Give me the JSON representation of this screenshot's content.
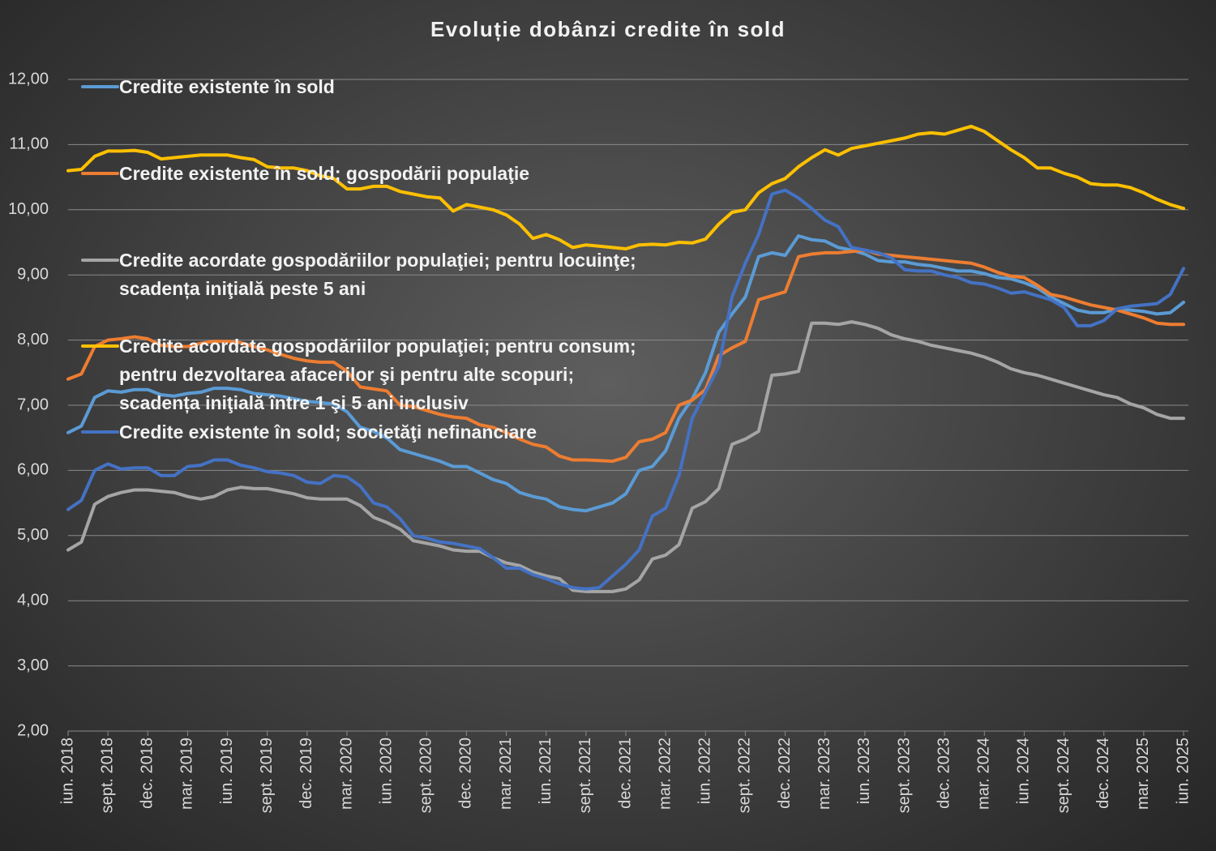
{
  "chart_data": {
    "type": "line",
    "title": "Evoluție dobânzi credite în sold",
    "categories": [
      "iun. 2018",
      null,
      null,
      "sept. 2018",
      null,
      null,
      "dec. 2018",
      null,
      null,
      "mar. 2019",
      null,
      null,
      "iun. 2019",
      null,
      null,
      "sept. 2019",
      null,
      null,
      "dec. 2019",
      null,
      null,
      "mar. 2020",
      null,
      null,
      "iun. 2020",
      null,
      null,
      "sept. 2020",
      null,
      null,
      "dec. 2020",
      null,
      null,
      "mar. 2021",
      null,
      null,
      "iun. 2021",
      null,
      null,
      "sept. 2021",
      null,
      null,
      "dec. 2021",
      null,
      null,
      "mar. 2022",
      null,
      null,
      "iun. 2022",
      null,
      null,
      "sept. 2022",
      null,
      null,
      "dec. 2022",
      null,
      null,
      "mar. 2023",
      null,
      null,
      "iun. 2023",
      null,
      null,
      "sept. 2023",
      null,
      null,
      "dec. 2023",
      null,
      null,
      "mar. 2024",
      null,
      null,
      "iun. 2024",
      null,
      null,
      "sept. 2024",
      null,
      null,
      "dec. 2024",
      null,
      null,
      "mar. 2025",
      null,
      null,
      "iun. 2025"
    ],
    "ylim": [
      2,
      12
    ],
    "yticks": [
      {
        "value": 2,
        "label": "2,00"
      },
      {
        "value": 3,
        "label": "3,00"
      },
      {
        "value": 4,
        "label": "4,00"
      },
      {
        "value": 5,
        "label": "5,00"
      },
      {
        "value": 6,
        "label": "6,00"
      },
      {
        "value": 7,
        "label": "7,00"
      },
      {
        "value": 8,
        "label": "8,00"
      },
      {
        "value": 9,
        "label": "9,00"
      },
      {
        "value": 10,
        "label": "10,00"
      },
      {
        "value": 11,
        "label": "11,00"
      },
      {
        "value": 12,
        "label": "12,00"
      }
    ],
    "grid": true,
    "series": [
      {
        "name": "Credite existente în sold",
        "color": "#5b9bd5",
        "values": [
          6.58,
          6.68,
          7.12,
          7.22,
          7.2,
          7.24,
          7.24,
          7.16,
          7.14,
          7.18,
          7.2,
          7.26,
          7.26,
          7.24,
          7.18,
          7.16,
          7.14,
          7.1,
          7.06,
          7.04,
          7.02,
          6.9,
          6.66,
          6.6,
          6.5,
          6.32,
          6.26,
          6.2,
          6.14,
          6.06,
          6.06,
          5.96,
          5.86,
          5.8,
          5.66,
          5.6,
          5.56,
          5.44,
          5.4,
          5.38,
          5.44,
          5.5,
          5.64,
          6.0,
          6.06,
          6.3,
          6.8,
          7.1,
          7.5,
          8.12,
          8.4,
          8.66,
          9.28,
          9.34,
          9.3,
          9.6,
          9.54,
          9.52,
          9.42,
          9.38,
          9.32,
          9.22,
          9.2,
          9.2,
          9.16,
          9.14,
          9.1,
          9.06,
          9.06,
          9.02,
          8.96,
          8.94,
          8.88,
          8.8,
          8.66,
          8.56,
          8.46,
          8.42,
          8.42,
          8.48,
          8.46,
          8.44,
          8.4,
          8.42,
          8.58
        ]
      },
      {
        "name": "Credite existente în sold; gospodării populaţie",
        "color": "#ed7d31",
        "values": [
          7.4,
          7.48,
          7.9,
          8.0,
          8.02,
          8.05,
          8.02,
          7.92,
          7.9,
          7.9,
          7.95,
          7.98,
          7.98,
          7.96,
          7.9,
          7.85,
          7.78,
          7.72,
          7.68,
          7.66,
          7.66,
          7.52,
          7.28,
          7.25,
          7.22,
          7.0,
          6.98,
          6.92,
          6.86,
          6.82,
          6.8,
          6.7,
          6.66,
          6.58,
          6.48,
          6.4,
          6.36,
          6.22,
          6.16,
          6.16,
          6.15,
          6.14,
          6.2,
          6.44,
          6.48,
          6.58,
          7.0,
          7.08,
          7.24,
          7.76,
          7.88,
          7.98,
          8.62,
          8.68,
          8.74,
          9.28,
          9.32,
          9.34,
          9.34,
          9.36,
          9.38,
          9.32,
          9.3,
          9.28,
          9.26,
          9.24,
          9.22,
          9.2,
          9.18,
          9.12,
          9.04,
          8.98,
          8.96,
          8.84,
          8.7,
          8.66,
          8.6,
          8.54,
          8.5,
          8.46,
          8.4,
          8.34,
          8.26,
          8.24,
          8.24
        ]
      },
      {
        "name": "Credite acordate gospodăriilor populaţiei; pentru locuinţe; scadența iniţială peste 5 ani",
        "color": "#a5a5a5",
        "values": [
          4.78,
          4.9,
          5.48,
          5.6,
          5.66,
          5.7,
          5.7,
          5.68,
          5.66,
          5.6,
          5.56,
          5.6,
          5.7,
          5.74,
          5.72,
          5.72,
          5.68,
          5.64,
          5.58,
          5.56,
          5.56,
          5.56,
          5.46,
          5.28,
          5.2,
          5.1,
          4.92,
          4.88,
          4.84,
          4.78,
          4.76,
          4.76,
          4.66,
          4.58,
          4.54,
          4.44,
          4.38,
          4.34,
          4.16,
          4.14,
          4.14,
          4.14,
          4.18,
          4.32,
          4.64,
          4.7,
          4.86,
          5.42,
          5.52,
          5.72,
          6.4,
          6.48,
          6.6,
          7.46,
          7.48,
          7.52,
          8.26,
          8.26,
          8.24,
          8.28,
          8.24,
          8.18,
          8.08,
          8.02,
          7.98,
          7.92,
          7.88,
          7.84,
          7.8,
          7.74,
          7.66,
          7.56,
          7.5,
          7.46,
          7.4,
          7.34,
          7.28,
          7.22,
          7.16,
          7.12,
          7.02,
          6.96,
          6.86,
          6.8,
          6.8
        ]
      },
      {
        "name": "Credite acordate gospodăriilor populaţiei; pentru consum; pentru dezvoltarea afacerilor şi pentru alte scopuri; scadența iniţială între 1 şi 5 ani inclusiv",
        "color": "#ffc000",
        "values": [
          10.6,
          10.62,
          10.82,
          10.9,
          10.9,
          10.91,
          10.88,
          10.78,
          10.8,
          10.82,
          10.84,
          10.84,
          10.84,
          10.8,
          10.77,
          10.66,
          10.64,
          10.64,
          10.6,
          10.52,
          10.48,
          10.32,
          10.32,
          10.36,
          10.36,
          10.28,
          10.24,
          10.2,
          10.18,
          9.98,
          10.08,
          10.04,
          10.0,
          9.92,
          9.78,
          9.56,
          9.62,
          9.54,
          9.42,
          9.46,
          9.44,
          9.42,
          9.4,
          9.46,
          9.47,
          9.46,
          9.5,
          9.49,
          9.55,
          9.78,
          9.96,
          10.0,
          10.26,
          10.4,
          10.48,
          10.66,
          10.8,
          10.92,
          10.84,
          10.94,
          10.98,
          11.02,
          11.06,
          11.1,
          11.16,
          11.18,
          11.16,
          11.22,
          11.28,
          11.2,
          11.06,
          10.92,
          10.8,
          10.64,
          10.64,
          10.56,
          10.5,
          10.4,
          10.38,
          10.38,
          10.34,
          10.26,
          10.16,
          10.08,
          10.02
        ]
      },
      {
        "name": "Credite existente în sold; societăţi nefinanciare",
        "color": "#4472c4",
        "values": [
          5.4,
          5.54,
          6.0,
          6.1,
          6.02,
          6.04,
          6.04,
          5.92,
          5.92,
          6.06,
          6.08,
          6.16,
          6.16,
          6.08,
          6.04,
          5.98,
          5.96,
          5.92,
          5.82,
          5.8,
          5.92,
          5.9,
          5.76,
          5.5,
          5.44,
          5.26,
          5.0,
          4.96,
          4.9,
          4.88,
          4.84,
          4.8,
          4.66,
          4.5,
          4.5,
          4.4,
          4.34,
          4.26,
          4.2,
          4.18,
          4.2,
          4.38,
          4.56,
          4.78,
          5.3,
          5.42,
          5.92,
          6.8,
          7.2,
          7.6,
          8.66,
          9.18,
          9.62,
          10.24,
          10.3,
          10.18,
          10.02,
          9.84,
          9.74,
          9.42,
          9.38,
          9.34,
          9.26,
          9.08,
          9.06,
          9.06,
          9.0,
          8.96,
          8.88,
          8.86,
          8.8,
          8.72,
          8.74,
          8.68,
          8.62,
          8.5,
          8.22,
          8.22,
          8.3,
          8.48,
          8.52,
          8.54,
          8.56,
          8.7,
          9.1
        ]
      }
    ]
  }
}
